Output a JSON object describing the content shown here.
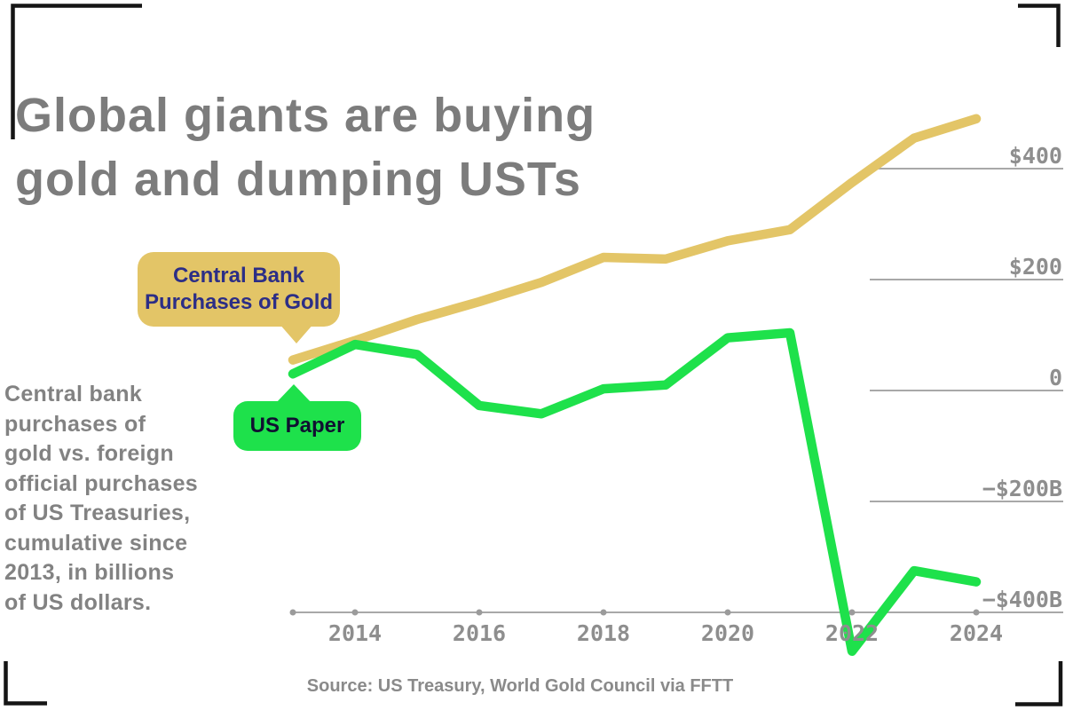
{
  "page": {
    "title": "Global giants are buying\ngold and dumping USTs",
    "description": "Central bank\npurchases of\ngold vs. foreign\nofficial purchases\nof US Treasuries,\ncumulative since\n2013, in billions\nof US dollars.",
    "source": "Source: US Treasury, World Gold Council via FFTT"
  },
  "colors": {
    "background": "#ffffff",
    "gold": "#e3c567",
    "green": "#1ee14b",
    "gold_callout_text": "#2c2e86",
    "green_callout_text": "#101031",
    "title_gray": "#7c7c7c",
    "body_gray": "#828282",
    "axis_label_gray": "#8e8e8e",
    "gridline_gray": "#9b9b9b",
    "crop_mark_black": "#151515"
  },
  "chart_data": {
    "type": "line",
    "title": "Global giants are buying gold and dumping USTs",
    "subtitle": "Central bank purchases of gold vs. foreign official purchases of US Treasuries, cumulative since 2013, in billions of US dollars.",
    "xlabel": "",
    "ylabel": "Cumulative since 2013, billions of US dollars",
    "ylim": [
      -480,
      500
    ],
    "grid": "horizontal, drawn from last series crossing to right edge",
    "legend_position": "callout bubbles on chart",
    "x": [
      2013,
      2014,
      2015,
      2016,
      2017,
      2018,
      2019,
      2020,
      2021,
      2022,
      2023,
      2024
    ],
    "series": [
      {
        "name": "Central Bank Purchases of Gold",
        "color": "#e3c567",
        "values": [
          55,
          90,
          128,
          160,
          195,
          240,
          237,
          270,
          290,
          375,
          455,
          490
        ]
      },
      {
        "name": "US Paper",
        "color": "#1ee14b",
        "values": [
          30,
          83,
          65,
          -27,
          -42,
          3,
          10,
          95,
          104,
          -470,
          -325,
          -345
        ]
      }
    ],
    "callouts": [
      {
        "label": "Central Bank\nPurchases of Gold",
        "series": "Central Bank Purchases of Gold"
      },
      {
        "label": "US Paper",
        "series": "US Paper"
      }
    ],
    "y_axis": {
      "labels": [
        "$400",
        "$200",
        "0",
        "−$200B",
        "−$400B"
      ],
      "values": [
        400,
        200,
        0,
        -200,
        -400
      ],
      "axis_value": -400
    },
    "x_axis": {
      "labels": [
        "2014",
        "2016",
        "2018",
        "2020",
        "2022",
        "2024"
      ],
      "tick_years": [
        2014,
        2016,
        2018,
        2020,
        2022,
        2024
      ],
      "start_year": 2013
    }
  }
}
